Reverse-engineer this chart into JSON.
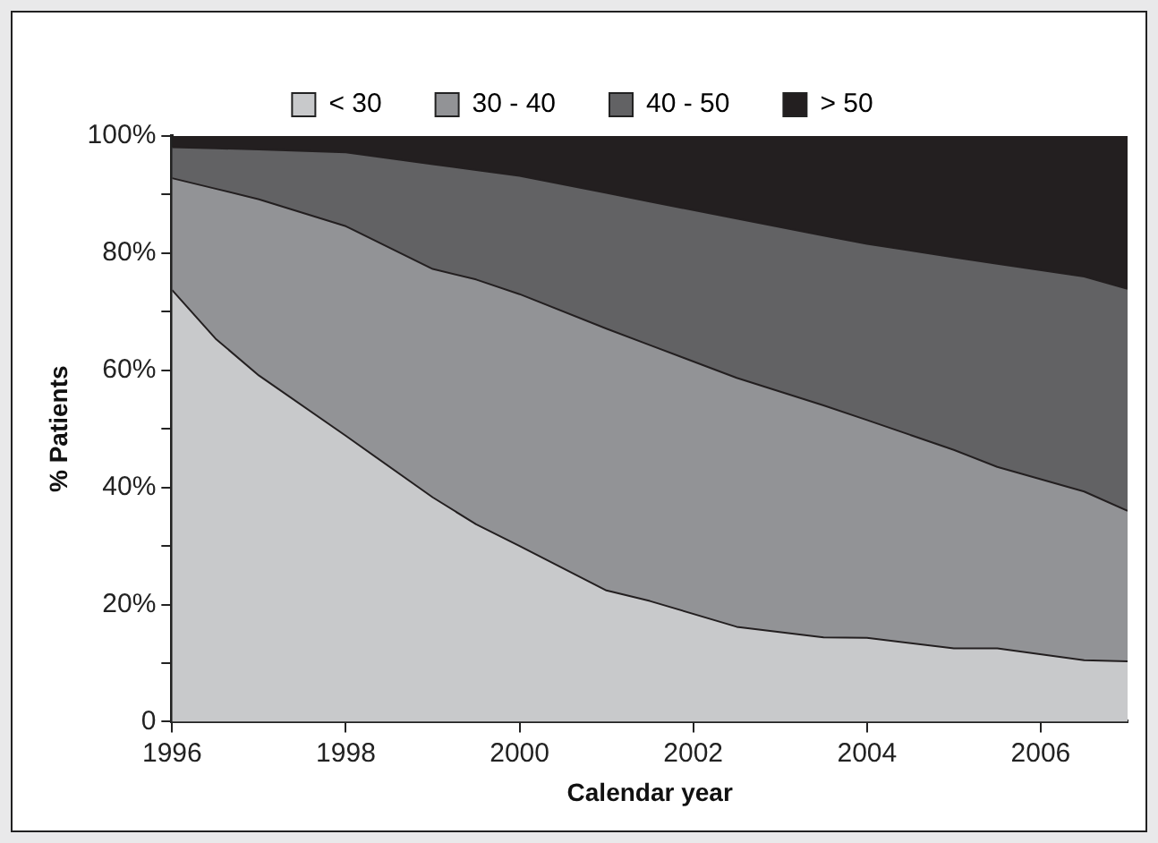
{
  "chart_data": {
    "type": "area",
    "stacked": true,
    "xlabel": "Calendar year",
    "ylabel": "% Patients",
    "legend": "top",
    "grid": false,
    "x": [
      1996,
      1996.5,
      1997,
      1998,
      1999,
      1999.5,
      2000,
      2001,
      2001.5,
      2002.5,
      2003.5,
      2004,
      2005,
      2005.5,
      2006.5,
      2007
    ],
    "series": [
      {
        "name": "< 30",
        "color": "#c8c9cb",
        "values": [
          73.7,
          65.4,
          59.1,
          48.8,
          38.3,
          33.7,
          30.0,
          22.4,
          20.6,
          16.2,
          14.4,
          14.3,
          12.5,
          12.5,
          10.5,
          10.3
        ]
      },
      {
        "name": "30 - 40",
        "color": "#929396",
        "values": [
          19.1,
          25.6,
          30.1,
          35.8,
          39.0,
          41.8,
          43.0,
          44.7,
          43.7,
          42.5,
          39.6,
          37.2,
          33.9,
          31.0,
          28.8,
          25.7
        ]
      },
      {
        "name": "40 - 50",
        "color": "#626264",
        "values": [
          5.3,
          6.9,
          8.5,
          12.6,
          17.9,
          18.7,
          20.2,
          23.2,
          24.5,
          27.2,
          29.0,
          30.1,
          32.9,
          34.7,
          36.7,
          37.9
        ]
      },
      {
        "name": "> 50",
        "color": "#231f20",
        "values": [
          1.9,
          2.1,
          2.3,
          2.8,
          4.8,
          5.8,
          6.8,
          9.7,
          11.2,
          14.1,
          17.0,
          18.4,
          20.7,
          21.8,
          24.0,
          26.1
        ]
      }
    ],
    "xlim": [
      1996,
      2007
    ],
    "xticks": [
      1996,
      1998,
      2000,
      2002,
      2004,
      2006
    ],
    "ylim": [
      0,
      100
    ],
    "yticks": [
      0,
      {
        "value": 10,
        "label": null
      },
      {
        "value": 20,
        "label": "20%"
      },
      {
        "value": 30,
        "label": null
      },
      {
        "value": 40,
        "label": "40%"
      },
      {
        "value": 50,
        "label": null
      },
      {
        "value": 60,
        "label": "60%"
      },
      {
        "value": 70,
        "label": null
      },
      {
        "value": 80,
        "label": "80%"
      },
      {
        "value": 90,
        "label": null
      },
      {
        "value": 100,
        "label": "100%"
      }
    ]
  }
}
